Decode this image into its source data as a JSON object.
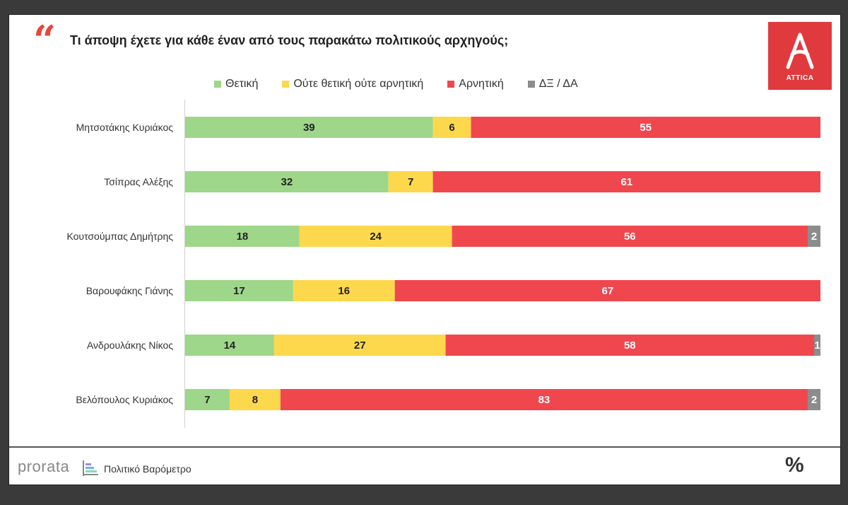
{
  "header": {
    "title": "Τι άποψη έχετε για κάθε έναν από τους παρακάτω πολιτικούς αρχηγούς;",
    "quote_icon": "quote-icon",
    "logo_text": "ATTICA"
  },
  "colors": {
    "positive": "#9ed68a",
    "neutral": "#fdd84c",
    "negative": "#f0474f",
    "dkna": "#8c8c8c",
    "accent": "#e03a3e"
  },
  "legend": [
    {
      "label": "Θετική",
      "color": "#9ed68a"
    },
    {
      "label": "Ούτε θετική ούτε αρνητική",
      "color": "#fdd84c"
    },
    {
      "label": "Αρνητική",
      "color": "#f0474f"
    },
    {
      "label": "ΔΞ / ΔΑ",
      "color": "#8c8c8c"
    }
  ],
  "chart_data": {
    "type": "bar",
    "orientation": "horizontal",
    "stacked": true,
    "categories": [
      "Μητσοτάκης Κυριάκος",
      "Τσίπρας Αλέξης",
      "Κουτσούμπας Δημήτρης",
      "Βαρουφάκης Γιάνης",
      "Ανδρουλάκης Νίκος",
      "Βελόπουλος Κυριάκος"
    ],
    "series": [
      {
        "name": "Θετική",
        "values": [
          39,
          32,
          18,
          17,
          14,
          7
        ]
      },
      {
        "name": "Ούτε θετική ούτε αρνητική",
        "values": [
          6,
          7,
          24,
          16,
          27,
          8
        ]
      },
      {
        "name": "Αρνητική",
        "values": [
          55,
          61,
          56,
          67,
          58,
          83
        ]
      },
      {
        "name": "ΔΞ / ΔΑ",
        "values": [
          0,
          0,
          2,
          0,
          1,
          2
        ]
      }
    ],
    "xlim": [
      0,
      100
    ],
    "legend_position": "top",
    "grid": false
  },
  "footer": {
    "brand": "prorata",
    "subtitle": "Πολιτικό Βαρόμετρο",
    "percent_icon": "%"
  }
}
